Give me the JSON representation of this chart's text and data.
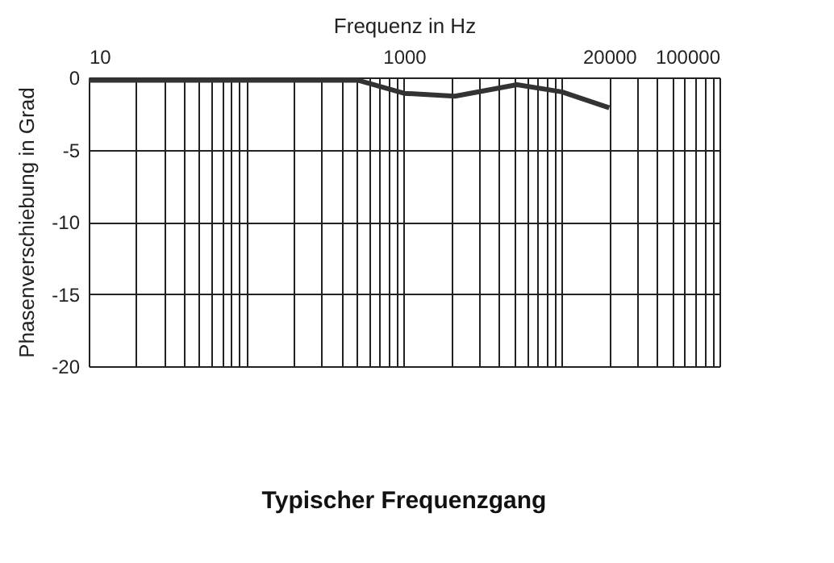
{
  "chart_data": {
    "type": "line",
    "title": "Typischer Frequenzgang",
    "xlabel": "Frequenz in Hz",
    "ylabel": "Phasenverschiebung in Grad",
    "log": "x",
    "x": [
      10,
      513,
      1000,
      2100,
      5200,
      10000,
      20000
    ],
    "series": [
      {
        "color": "#333333",
        "values": [
          -0.2,
          -0.2,
          -1.1,
          -1.3,
          -0.5,
          -1.0,
          -2.1
        ]
      }
    ],
    "xlim": [
      10,
      100000
    ],
    "ylim": [
      -20,
      0
    ],
    "xticks": [
      10,
      {
        "value": 20,
        "label": null
      },
      {
        "value": 30,
        "label": null
      },
      {
        "value": 40,
        "label": null
      },
      {
        "value": 50,
        "label": null
      },
      {
        "value": 60,
        "label": null
      },
      {
        "value": 70,
        "label": null
      },
      {
        "value": 80,
        "label": null
      },
      {
        "value": 90,
        "label": null
      },
      {
        "value": 100,
        "label": null
      },
      {
        "value": 200,
        "label": null
      },
      {
        "value": 300,
        "label": null
      },
      {
        "value": 400,
        "label": null
      },
      {
        "value": 500,
        "label": null
      },
      {
        "value": 600,
        "label": null
      },
      {
        "value": 700,
        "label": null
      },
      {
        "value": 800,
        "label": null
      },
      {
        "value": 900,
        "label": null
      },
      1000,
      {
        "value": 2000,
        "label": null
      },
      {
        "value": 3000,
        "label": null
      },
      {
        "value": 4000,
        "label": null
      },
      {
        "value": 5000,
        "label": null
      },
      {
        "value": 6000,
        "label": null
      },
      {
        "value": 7000,
        "label": null
      },
      {
        "value": 8000,
        "label": null
      },
      {
        "value": 9000,
        "label": null
      },
      {
        "value": 10000,
        "label": null
      },
      20000,
      {
        "value": 30000,
        "label": null
      },
      {
        "value": 40000,
        "label": null
      },
      {
        "value": 50000,
        "label": null
      },
      {
        "value": 60000,
        "label": null
      },
      {
        "value": 70000,
        "label": null
      },
      {
        "value": 80000,
        "label": null
      },
      {
        "value": 90000,
        "label": null
      },
      100000
    ],
    "yticks": [
      0,
      -5,
      -10,
      -15,
      -20
    ],
    "grid": true,
    "marker": "none",
    "line_style": "solid"
  }
}
